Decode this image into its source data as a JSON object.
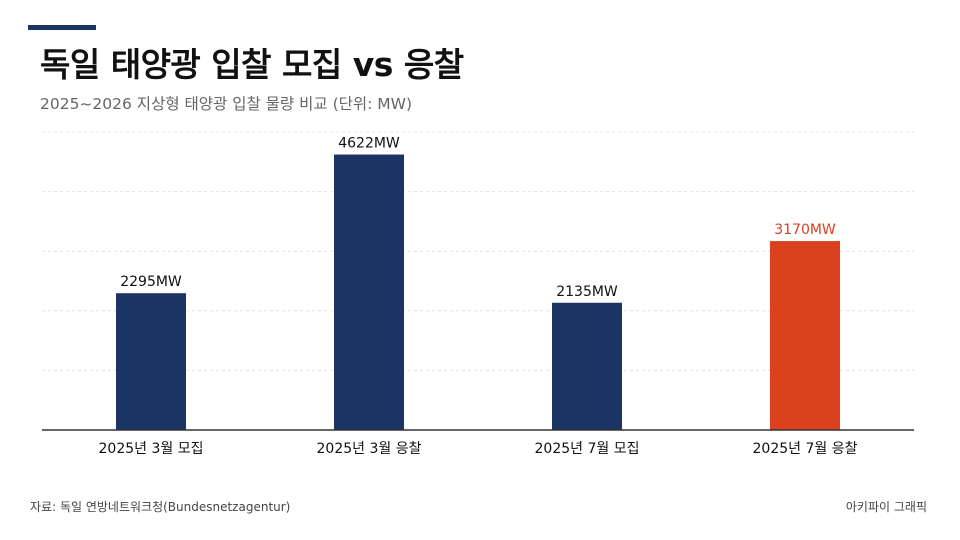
{
  "header": {
    "title": "독일 태양광 입찰 모집 vs 응찰",
    "subtitle": "2025~2026 지상형 태양광 입찰 물량 비교 (단위: MW)"
  },
  "footer": {
    "source": "자료: 독일 연방네트워크청(Bundesnetzagentur)",
    "credit": "아키파이 그래픽"
  },
  "colors": {
    "default_bar": "#1b3464",
    "highlight_bar": "#d9411f",
    "axis": "#333333",
    "grid": "#e0e0e0"
  },
  "chart_data": {
    "type": "bar",
    "categories": [
      "2025년 3월 모집",
      "2025년 3월 응찰",
      "2025년 7월 모집",
      "2025년 7월 응찰"
    ],
    "values": [
      2295,
      4622,
      2135,
      3170
    ],
    "data_labels": [
      "2295MW",
      "4622MW",
      "2135MW",
      "3170MW"
    ],
    "highlight_index": 3,
    "ylim": [
      0,
      5000
    ],
    "grid": true,
    "unit": "MW"
  }
}
